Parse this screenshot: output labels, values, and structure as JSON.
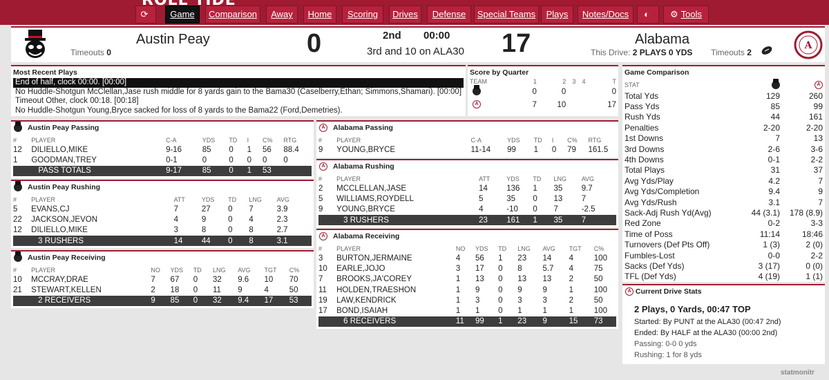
{
  "brand": "ROLL TIDE",
  "nav": [
    {
      "label": "",
      "icon": "refresh-icon",
      "active": false
    },
    {
      "label": "Game",
      "active": true
    },
    {
      "label": "Comparison",
      "active": false
    },
    {
      "label": "Away",
      "active": false
    },
    {
      "label": "Home",
      "active": false
    },
    {
      "label": "Scoring",
      "active": false
    },
    {
      "label": "Drives",
      "active": false
    },
    {
      "label": "Defense",
      "active": false
    },
    {
      "label": "Special Teams",
      "active": false
    },
    {
      "label": "Plays",
      "active": false
    },
    {
      "label": "Notes/Docs",
      "active": false
    },
    {
      "label": "",
      "icon": "contrast-icon",
      "active": false
    },
    {
      "label": "Tools",
      "icon": "gears-icon",
      "active": false
    }
  ],
  "scoreboard": {
    "away_name": "Austin Peay",
    "away_timeouts_label": "Timeouts",
    "away_timeouts": "0",
    "away_score": "0",
    "quarter": "2nd",
    "clock": "00:00",
    "down_distance": "3rd and 10 on ALA30",
    "home_score": "17",
    "home_name": "Alabama",
    "this_drive_label": "This Drive:",
    "this_drive": "2 PLAYS 0 YDS",
    "home_timeouts_label": "Timeouts",
    "home_timeouts": "2"
  },
  "recent_plays": {
    "title": "Most Recent Plays",
    "items": [
      "End of half, clock 00:00. [00:00]",
      "No Huddle-Shotgun McClellan,Jase rush middle for 8 yards gain to the Bama30 (Caselberry,Ethan; Simmons,Shamari). [00:00]",
      "Timeout Other, clock 00:18. [00:18]",
      "No Huddle-Shotgun Young,Bryce sacked for loss of 8 yards to the Bama22 (Ford,Demetries)."
    ]
  },
  "score_by_quarter": {
    "title": "Score by Quarter",
    "headers": [
      "TEAM",
      "1",
      "2",
      "3",
      "4",
      "T"
    ],
    "rows": [
      {
        "q": [
          "0",
          "0",
          "",
          ""
        ],
        "t": "0"
      },
      {
        "q": [
          "7",
          "10",
          "",
          ""
        ],
        "t": "17"
      }
    ]
  },
  "ap_passing": {
    "title": "Austin Peay Passing",
    "headers": [
      "#",
      "PLAYER",
      "C-A",
      "YDS",
      "TD",
      "I",
      "C%",
      "RTG"
    ],
    "rows": [
      [
        "12",
        "DILIELLO,MIKE",
        "9-16",
        "85",
        "0",
        "1",
        "56",
        "88.4"
      ],
      [
        "1",
        "GOODMAN,TREY",
        "0-1",
        "0",
        "0",
        "0",
        "0",
        "0"
      ]
    ],
    "total": [
      "",
      "PASS TOTALS",
      "9-17",
      "85",
      "0",
      "1",
      "53",
      ""
    ]
  },
  "ap_rushing": {
    "title": "Austin Peay Rushing",
    "headers": [
      "#",
      "PLAYER",
      "ATT",
      "YDS",
      "TD",
      "LNG",
      "AVG"
    ],
    "rows": [
      [
        "5",
        "EVANS,CJ",
        "7",
        "27",
        "0",
        "7",
        "3.9"
      ],
      [
        "22",
        "JACKSON,JEVON",
        "4",
        "9",
        "0",
        "4",
        "2.3"
      ],
      [
        "12",
        "DILIELLO,MIKE",
        "3",
        "8",
        "0",
        "8",
        "2.7"
      ]
    ],
    "total": [
      "",
      "3 RUSHERS",
      "14",
      "44",
      "0",
      "8",
      "3.1"
    ]
  },
  "ap_receiving": {
    "title": "Austin Peay Receiving",
    "headers": [
      "#",
      "PLAYER",
      "NO",
      "YDS",
      "TD",
      "LNG",
      "AVG",
      "TGT",
      "C%"
    ],
    "rows": [
      [
        "10",
        "MCCRAY,DRAE",
        "7",
        "67",
        "0",
        "32",
        "9.6",
        "10",
        "70"
      ],
      [
        "21",
        "STEWART,KELLEN",
        "2",
        "18",
        "0",
        "11",
        "9",
        "4",
        "50"
      ]
    ],
    "total": [
      "",
      "2 RECEIVERS",
      "9",
      "85",
      "0",
      "32",
      "9.4",
      "17",
      "53"
    ]
  },
  "al_passing": {
    "title": "Alabama Passing",
    "headers": [
      "#",
      "PLAYER",
      "C-A",
      "YDS",
      "TD",
      "I",
      "C%",
      "RTG"
    ],
    "rows": [
      [
        "9",
        "YOUNG,BRYCE",
        "11-14",
        "99",
        "1",
        "0",
        "79",
        "161.5"
      ]
    ]
  },
  "al_rushing": {
    "title": "Alabama Rushing",
    "headers": [
      "#",
      "PLAYER",
      "ATT",
      "YDS",
      "TD",
      "LNG",
      "AVG"
    ],
    "rows": [
      [
        "2",
        "MCCLELLAN,JASE",
        "14",
        "136",
        "1",
        "35",
        "9.7"
      ],
      [
        "5",
        "WILLIAMS,ROYDELL",
        "5",
        "35",
        "0",
        "13",
        "7"
      ],
      [
        "9",
        "YOUNG,BRYCE",
        "4",
        "-10",
        "0",
        "7",
        "-2.5"
      ]
    ],
    "total": [
      "",
      "3 RUSHERS",
      "23",
      "161",
      "1",
      "35",
      "7"
    ]
  },
  "al_receiving": {
    "title": "Alabama Receiving",
    "headers": [
      "#",
      "PLAYER",
      "NO",
      "YDS",
      "TD",
      "LNG",
      "AVG",
      "TGT",
      "C%"
    ],
    "rows": [
      [
        "3",
        "BURTON,JERMAINE",
        "4",
        "56",
        "1",
        "23",
        "14",
        "4",
        "100"
      ],
      [
        "10",
        "EARLE,JOJO",
        "3",
        "17",
        "0",
        "8",
        "5.7",
        "4",
        "75"
      ],
      [
        "7",
        "BROOKS,JA'COREY",
        "1",
        "13",
        "0",
        "13",
        "13",
        "2",
        "50"
      ],
      [
        "11",
        "HOLDEN,TRAESHON",
        "1",
        "9",
        "0",
        "9",
        "9",
        "1",
        "100"
      ],
      [
        "19",
        "LAW,KENDRICK",
        "1",
        "3",
        "0",
        "3",
        "3",
        "2",
        "50"
      ],
      [
        "17",
        "BOND,ISAIAH",
        "1",
        "1",
        "0",
        "1",
        "1",
        "1",
        "100"
      ]
    ],
    "total": [
      "",
      "6 RECEIVERS",
      "11",
      "99",
      "1",
      "23",
      "9",
      "15",
      "73"
    ]
  },
  "comparison": {
    "title": "Game Comparison",
    "stat_header": "STAT",
    "rows": [
      [
        "Total Yds",
        "129",
        "260"
      ],
      [
        "Pass Yds",
        "85",
        "99"
      ],
      [
        "Rush Yds",
        "44",
        "161"
      ],
      [
        "Penalties",
        "2-20",
        "2-20"
      ],
      [
        "1st Downs",
        "7",
        "13"
      ],
      [
        "3rd Downs",
        "2-6",
        "3-6"
      ],
      [
        "4th Downs",
        "0-1",
        "2-2"
      ],
      [
        "Total Plays",
        "31",
        "37"
      ],
      [
        "Avg Yds/Play",
        "4.2",
        "7"
      ],
      [
        "Avg Yds/Completion",
        "9.4",
        "9"
      ],
      [
        "Avg Yds/Rush",
        "3.1",
        "7"
      ],
      [
        "Sack-Adj Rush Yd(Avg)",
        "44 (3.1)",
        "178 (8.9)"
      ],
      [
        "Red Zone",
        "0-2",
        "3-3"
      ],
      [
        "Time of Poss",
        "11:14",
        "18:46"
      ],
      [
        "Turnovers (Def Pts Off)",
        "1 (3)",
        "2 (0)"
      ],
      [
        "Fumbles-Lost",
        "0-0",
        "2-2"
      ],
      [
        "Sacks (Def Yds)",
        "3 (17)",
        "0 (0)"
      ],
      [
        "TFL (Def Yds)",
        "4 (19)",
        "1 (1)"
      ]
    ]
  },
  "drive": {
    "title": "Current Drive Stats",
    "summary": "2 Plays, 0 Yards, 00:47 TOP",
    "started": "Started: By PUNT at the ALA30 (00:47 2nd)",
    "ended": "Ended: By HALF at the ALA30 (00:00 2nd)",
    "passing": "Passing: 0-0 0 yds",
    "rushing": "Rushing: 1 for 8 yds"
  },
  "footer_logo": "statmonitr",
  "colors": {
    "crimson": "#9e1b32",
    "dark": "#3d3d3d"
  }
}
